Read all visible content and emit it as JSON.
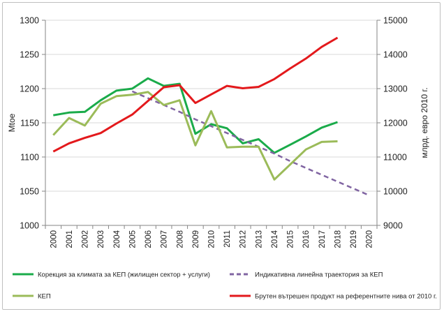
{
  "chart_data": {
    "type": "line",
    "title": "",
    "x": [
      "2000",
      "2001",
      "2002",
      "2003",
      "2004",
      "2005",
      "2006",
      "2007",
      "2008",
      "2009",
      "2010",
      "2011",
      "2012",
      "2013",
      "2014",
      "2015",
      "2016",
      "2017",
      "2018",
      "2019",
      "2020"
    ],
    "y_left": {
      "label": "Mtoe",
      "range": [
        1000,
        1300
      ],
      "ticks": [
        "1000",
        "1050",
        "1100",
        "1150",
        "1200",
        "1250",
        "1300"
      ]
    },
    "y_right": {
      "label": "млрд. евро 2010 г.",
      "range": [
        9000,
        15000
      ],
      "ticks": [
        "9000",
        "10000",
        "11000",
        "12000",
        "13000",
        "14000",
        "15000"
      ]
    },
    "grid": "horizontal",
    "legend_position": "bottom",
    "series": [
      {
        "name": "Корекция за климата за КЕП (жилищен сектор + услуги)",
        "axis": "left",
        "color": "#1aab4a",
        "style": "solid",
        "values": [
          1161,
          1165,
          1166,
          1183,
          1197,
          1200,
          1215,
          1204,
          1207,
          1134,
          1148,
          1142,
          1120,
          1126,
          1106,
          1118,
          1130,
          1143,
          1151,
          null,
          null
        ]
      },
      {
        "name": "Индикативна линейна траектория за КЕП",
        "axis": "left",
        "color": "#8064a2",
        "style": "dashed",
        "values": [
          null,
          null,
          null,
          null,
          null,
          1196,
          1186,
          1176,
          1166,
          1155,
          1145,
          1135,
          1125,
          1115,
          1105,
          1094,
          1084,
          1074,
          1064,
          1054,
          1044
        ]
      },
      {
        "name": "КЕП",
        "axis": "left",
        "color": "#9bbb59",
        "style": "solid",
        "values": [
          1132,
          1157,
          1146,
          1178,
          1189,
          1191,
          1195,
          1176,
          1183,
          1117,
          1167,
          1114,
          1115,
          1115,
          1067,
          1089,
          1111,
          1122,
          1123,
          null,
          null
        ]
      },
      {
        "name": "Брутен вътрешен продукт на референтните нива от 2010 г.",
        "axis": "right",
        "color": "#e3191c",
        "style": "solid",
        "values": [
          11160,
          11400,
          11560,
          11700,
          11980,
          12240,
          12640,
          13040,
          13100,
          12580,
          12830,
          13080,
          13010,
          13050,
          13280,
          13590,
          13880,
          14220,
          14490,
          null,
          null
        ]
      }
    ]
  }
}
